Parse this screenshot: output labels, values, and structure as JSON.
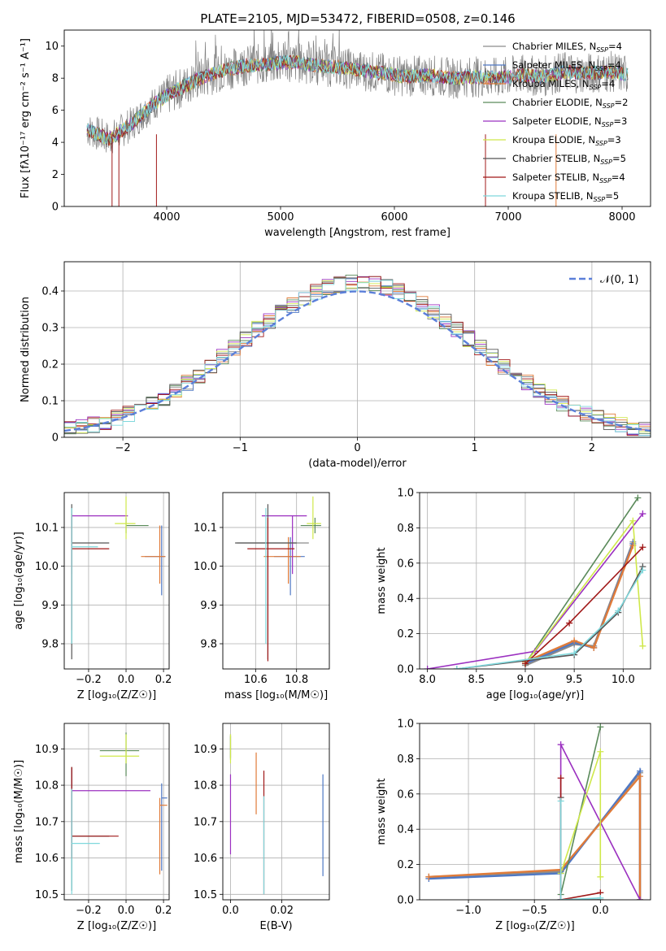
{
  "title": "PLATE=2105, MJD=53472, FIBERID=0508, z=0.146",
  "models": [
    {
      "name": "Chabrier MILES",
      "nssp": "4",
      "color": "#8c8c8c"
    },
    {
      "name": "Salpeter MILES",
      "nssp": "4",
      "color": "#4f78c4"
    },
    {
      "name": "Kroupa MILES",
      "nssp": "4",
      "color": "#e07b39"
    },
    {
      "name": "Chabrier ELODIE",
      "nssp": "2",
      "color": "#5a8a5a"
    },
    {
      "name": "Salpeter ELODIE",
      "nssp": "3",
      "color": "#9b30c0"
    },
    {
      "name": "Kroupa ELODIE",
      "nssp": "3",
      "color": "#cfe84a"
    },
    {
      "name": "Chabrier STELIB",
      "nssp": "5",
      "color": "#555555"
    },
    {
      "name": "Salpeter STELIB",
      "nssp": "4",
      "color": "#a01818"
    },
    {
      "name": "Kroupa STELIB",
      "nssp": "5",
      "color": "#7fd8dc"
    }
  ],
  "chart_data": [
    {
      "id": "spectrum",
      "type": "line",
      "xlabel": "wavelength [Angstrom, rest frame]",
      "ylabel": "Flux [fλ10⁻¹⁷ erg cm⁻² s⁻¹ A⁻¹]",
      "xlim": [
        3100,
        8250
      ],
      "ylim": [
        0,
        11
      ],
      "xticks": [
        4000,
        5000,
        6000,
        7000,
        8000
      ],
      "yticks": [
        0,
        2,
        4,
        6,
        8,
        10
      ],
      "observed": {
        "x": [
          3300,
          3500,
          3700,
          3900,
          4100,
          4300,
          4500,
          4700,
          4900,
          5100,
          5300,
          5500,
          5700,
          5900,
          6100,
          6300,
          6500,
          6700,
          6900,
          7100,
          7300,
          7500,
          7700,
          7900,
          8050
        ],
        "y": [
          4.8,
          4.2,
          5.2,
          6.5,
          7.3,
          8.0,
          8.5,
          8.8,
          8.9,
          9.0,
          8.8,
          8.7,
          8.5,
          8.3,
          8.1,
          8.2,
          8.0,
          8.1,
          8.0,
          8.2,
          8.1,
          8.4,
          8.3,
          8.4,
          8.2
        ]
      },
      "legend_position": "upper right",
      "grid": false
    },
    {
      "id": "residuals",
      "type": "step",
      "xlabel": "(data-model)/error",
      "ylabel": "Normed distribution",
      "xlim": [
        -2.5,
        2.5
      ],
      "ylim": [
        0,
        0.48
      ],
      "xticks": [
        -2,
        -1,
        0,
        1,
        2
      ],
      "yticks": [
        0.0,
        0.1,
        0.2,
        0.3,
        0.4
      ],
      "reference_label": "𝒩(0, 1)",
      "grid": true,
      "legend_position": "upper right"
    },
    {
      "id": "age-vs-Z",
      "type": "errorbar",
      "xlabel": "Z [log₁₀(Z/Z☉)]",
      "ylabel": "age  [log₁₀(age/yr)]",
      "xlim": [
        -0.33,
        0.23
      ],
      "ylim": [
        9.735,
        10.19
      ],
      "xticks": [
        -0.2,
        0.0,
        0.2
      ],
      "yticks": [
        9.8,
        9.9,
        10.0,
        10.1
      ],
      "points": [
        {
          "x": -0.29,
          "xerr": [
            0.0,
            0.0
          ],
          "y": 10.03,
          "yerr": [
            0.03,
            0.02
          ],
          "model": 0
        },
        {
          "x": 0.19,
          "xerr": [
            0.09,
            0.02
          ],
          "y": 10.025,
          "yerr": [
            0.1,
            0.08
          ],
          "model": 1
        },
        {
          "x": 0.18,
          "xerr": [
            0.1,
            0.03
          ],
          "y": 10.025,
          "yerr": [
            0.07,
            0.08
          ],
          "model": 2
        },
        {
          "x": 0.0,
          "xerr": [
            0.0,
            0.12
          ],
          "y": 10.105,
          "yerr": [
            0.02,
            0.02
          ],
          "model": 3
        },
        {
          "x": -0.29,
          "xerr": [
            0.0,
            0.3
          ],
          "y": 10.13,
          "yerr": [
            0.15,
            0.0
          ],
          "model": 4
        },
        {
          "x": 0.0,
          "xerr": [
            0.06,
            0.05
          ],
          "y": 10.11,
          "yerr": [
            0.04,
            0.07
          ],
          "model": 5
        },
        {
          "x": -0.29,
          "xerr": [
            0.0,
            0.2
          ],
          "y": 10.06,
          "yerr": [
            0.3,
            0.1
          ],
          "model": 6
        },
        {
          "x": -0.29,
          "xerr": [
            0.0,
            0.2
          ],
          "y": 10.045,
          "yerr": [
            0.21,
            0.09
          ],
          "model": 7
        },
        {
          "x": -0.29,
          "xerr": [
            0.0,
            0.14
          ],
          "y": 10.05,
          "yerr": [
            0.25,
            0.1
          ],
          "model": 8
        }
      ]
    },
    {
      "id": "age-vs-mass",
      "type": "errorbar",
      "xlabel": "mass [log₁₀(M/M☉)]",
      "ylabel": "",
      "xlim": [
        10.44,
        10.96
      ],
      "ylim": [
        9.735,
        10.19
      ],
      "xticks": [
        10.6,
        10.8
      ],
      "yticks": [
        9.8,
        9.9,
        10.0,
        10.1
      ],
      "points": [
        {
          "x": 10.66,
          "xerr": [
            0.15,
            0.2
          ],
          "y": 10.06,
          "yerr": [
            0.0,
            0.0
          ],
          "model": 0
        },
        {
          "x": 10.77,
          "xerr": [
            0.08,
            0.07
          ],
          "y": 10.025,
          "yerr": [
            0.1,
            0.05
          ],
          "model": 1
        },
        {
          "x": 10.76,
          "xerr": [
            0.12,
            0.06
          ],
          "y": 10.025,
          "yerr": [
            0.07,
            0.05
          ],
          "model": 2
        },
        {
          "x": 10.89,
          "xerr": [
            0.07,
            0.03
          ],
          "y": 10.105,
          "yerr": [
            0.02,
            0.02
          ],
          "model": 3
        },
        {
          "x": 10.78,
          "xerr": [
            0.15,
            0.07
          ],
          "y": 10.13,
          "yerr": [
            0.15,
            0.0
          ],
          "model": 4
        },
        {
          "x": 10.88,
          "xerr": [
            0.03,
            0.04
          ],
          "y": 10.11,
          "yerr": [
            0.04,
            0.07
          ],
          "model": 5
        },
        {
          "x": 10.66,
          "xerr": [
            0.16,
            0.14
          ],
          "y": 10.06,
          "yerr": [
            0.3,
            0.1
          ],
          "model": 6
        },
        {
          "x": 10.66,
          "xerr": [
            0.1,
            0.13
          ],
          "y": 10.045,
          "yerr": [
            0.29,
            0.08
          ],
          "model": 7
        },
        {
          "x": 10.65,
          "xerr": [
            0.0,
            0.0
          ],
          "y": 10.05,
          "yerr": [
            0.25,
            0.1
          ],
          "model": 8
        }
      ]
    },
    {
      "id": "mass-weight-vs-age",
      "type": "line",
      "xlabel": "age  [log₁₀(age/yr)]",
      "ylabel": "mass weight",
      "xlim": [
        7.92,
        10.28
      ],
      "ylim": [
        0,
        1.0
      ],
      "xticks": [
        8.0,
        8.5,
        9.0,
        9.5,
        10.0
      ],
      "yticks": [
        0.0,
        0.2,
        0.4,
        0.6,
        0.8,
        1.0
      ],
      "grid": true,
      "series": [
        {
          "model": 0,
          "x": [
            9.0,
            9.5,
            9.7,
            10.1
          ],
          "y": [
            0.02,
            0.14,
            0.13,
            0.72
          ]
        },
        {
          "model": 1,
          "x": [
            9.0,
            9.5,
            9.7,
            10.1
          ],
          "y": [
            0.03,
            0.15,
            0.12,
            0.71
          ]
        },
        {
          "model": 2,
          "x": [
            9.0,
            9.5,
            9.7,
            10.1
          ],
          "y": [
            0.04,
            0.16,
            0.12,
            0.7
          ]
        },
        {
          "model": 3,
          "x": [
            9.0,
            10.15
          ],
          "y": [
            0.03,
            0.97
          ]
        },
        {
          "model": 4,
          "x": [
            8.0,
            9.1,
            10.2
          ],
          "y": [
            0.0,
            0.1,
            0.88
          ]
        },
        {
          "model": 5,
          "x": [
            9.0,
            10.1,
            10.2
          ],
          "y": [
            0.03,
            0.84,
            0.13
          ]
        },
        {
          "model": 6,
          "x": [
            8.3,
            9.5,
            9.95,
            10.2
          ],
          "y": [
            0.0,
            0.08,
            0.32,
            0.58
          ]
        },
        {
          "model": 7,
          "x": [
            9.0,
            9.45,
            10.2
          ],
          "y": [
            0.03,
            0.26,
            0.69
          ]
        },
        {
          "model": 8,
          "x": [
            8.3,
            9.5,
            9.95,
            10.2
          ],
          "y": [
            0.0,
            0.09,
            0.33,
            0.56
          ]
        }
      ]
    },
    {
      "id": "mass-vs-Z",
      "type": "errorbar",
      "xlabel": "Z [log₁₀(Z/Z☉)]",
      "ylabel": "mass [log₁₀(M/M☉)]",
      "xlim": [
        -0.33,
        0.23
      ],
      "ylim": [
        10.485,
        10.97
      ],
      "xticks": [
        -0.2,
        0.0,
        0.2
      ],
      "yticks": [
        10.5,
        10.6,
        10.7,
        10.8,
        10.9
      ],
      "points": [
        {
          "x": -0.29,
          "xerr": [
            0.0,
            0.0
          ],
          "y": 10.66,
          "yerr": [
            0.06,
            0.19
          ],
          "model": 0
        },
        {
          "x": 0.19,
          "xerr": [
            0.0,
            0.03
          ],
          "y": 10.765,
          "yerr": [
            0.2,
            0.04
          ],
          "model": 1
        },
        {
          "x": 0.18,
          "xerr": [
            0.0,
            0.04
          ],
          "y": 10.745,
          "yerr": [
            0.19,
            0.02
          ],
          "model": 2
        },
        {
          "x": 0.0,
          "xerr": [
            0.14,
            0.07
          ],
          "y": 10.895,
          "yerr": [
            0.07,
            0.05
          ],
          "model": 3
        },
        {
          "x": -0.29,
          "xerr": [
            0.0,
            0.42
          ],
          "y": 10.785,
          "yerr": [
            0.18,
            0.06
          ],
          "model": 4
        },
        {
          "x": 0.0,
          "xerr": [
            0.14,
            0.07
          ],
          "y": 10.88,
          "yerr": [
            0.02,
            0.06
          ],
          "model": 5
        },
        {
          "x": -0.29,
          "xerr": [
            0.0,
            0.2
          ],
          "y": 10.66,
          "yerr": [
            0.15,
            0.19
          ],
          "model": 6
        },
        {
          "x": -0.29,
          "xerr": [
            0.0,
            0.25
          ],
          "y": 10.66,
          "yerr": [
            0.06,
            0.19
          ],
          "model": 7
        },
        {
          "x": -0.29,
          "xerr": [
            0.0,
            0.15
          ],
          "y": 10.64,
          "yerr": [
            0.14,
            0.15
          ],
          "model": 8
        }
      ]
    },
    {
      "id": "mass-vs-ebv",
      "type": "errorbar",
      "xlabel": "E(B-V)",
      "ylabel": "",
      "xlim": [
        -0.003,
        0.0385
      ],
      "ylim": [
        10.485,
        10.97
      ],
      "xticks": [
        0.0,
        0.02
      ],
      "yticks": [
        10.5,
        10.6,
        10.7,
        10.8,
        10.9
      ],
      "points": [
        {
          "x": 0.0,
          "xerr": [
            0.0,
            0.0
          ],
          "y": 10.9,
          "yerr": [
            0.03,
            0.04
          ],
          "model": 0
        },
        {
          "x": 0.036,
          "xerr": [
            0.0,
            0.0
          ],
          "y": 10.69,
          "yerr": [
            0.14,
            0.14
          ],
          "model": 1
        },
        {
          "x": 0.0,
          "xerr": [
            0.0,
            0.0
          ],
          "y": 10.895,
          "yerr": [
            0.02,
            0.04
          ],
          "model": 3
        },
        {
          "x": 0.0,
          "xerr": [
            0.0,
            0.0
          ],
          "y": 10.72,
          "yerr": [
            0.11,
            0.11
          ],
          "model": 4
        },
        {
          "x": 0.0,
          "xerr": [
            0.0,
            0.0
          ],
          "y": 10.89,
          "yerr": [
            0.03,
            0.05
          ],
          "model": 5
        },
        {
          "x": 0.01,
          "xerr": [
            0.0,
            0.0
          ],
          "y": 10.8,
          "yerr": [
            0.08,
            0.09
          ],
          "model": 2
        },
        {
          "x": 0.013,
          "xerr": [
            0.0,
            0.0
          ],
          "y": 10.66,
          "yerr": [
            0.16,
            0.18
          ],
          "model": 7
        },
        {
          "x": 0.013,
          "xerr": [
            0.0,
            0.0
          ],
          "y": 10.64,
          "yerr": [
            0.14,
            0.13
          ],
          "model": 8
        }
      ]
    },
    {
      "id": "mass-weight-vs-Z",
      "type": "line",
      "xlabel": "Z [log₁₀(Z/Z☉)]",
      "ylabel": "mass weight",
      "xlim": [
        -1.37,
        0.38
      ],
      "ylim": [
        0,
        1.0
      ],
      "xticks": [
        -1.0,
        -0.5,
        0.0
      ],
      "yticks": [
        0.0,
        0.2,
        0.4,
        0.6,
        0.8,
        1.0
      ],
      "grid": true,
      "series": [
        {
          "model": 0,
          "x": [
            -1.3,
            -0.3,
            0.3,
            0.3
          ],
          "y": [
            0.13,
            0.16,
            0.72,
            0.0
          ]
        },
        {
          "model": 1,
          "x": [
            -1.3,
            -0.3,
            0.3,
            0.3
          ],
          "y": [
            0.12,
            0.15,
            0.73,
            0.0
          ]
        },
        {
          "model": 2,
          "x": [
            -1.3,
            -0.3,
            0.3,
            0.3
          ],
          "y": [
            0.13,
            0.17,
            0.7,
            0.0
          ]
        },
        {
          "model": 3,
          "x": [
            -0.3,
            0.0
          ],
          "y": [
            0.03,
            0.98
          ]
        },
        {
          "model": 4,
          "x": [
            -0.3,
            -0.3,
            0.3
          ],
          "y": [
            0.0,
            0.88,
            0.0
          ]
        },
        {
          "model": 5,
          "x": [
            -0.3,
            0.0,
            0.0
          ],
          "y": [
            0.15,
            0.84,
            0.13
          ]
        },
        {
          "model": 6,
          "x": [
            -0.3,
            -0.3,
            0.0
          ],
          "y": [
            0.58,
            0.0,
            0.0
          ]
        },
        {
          "model": 7,
          "x": [
            -0.3,
            -0.3,
            0.0
          ],
          "y": [
            0.69,
            0.0,
            0.04
          ]
        },
        {
          "model": 8,
          "x": [
            -0.3,
            -0.3,
            0.0
          ],
          "y": [
            0.56,
            0.0,
            0.01
          ]
        }
      ]
    }
  ]
}
